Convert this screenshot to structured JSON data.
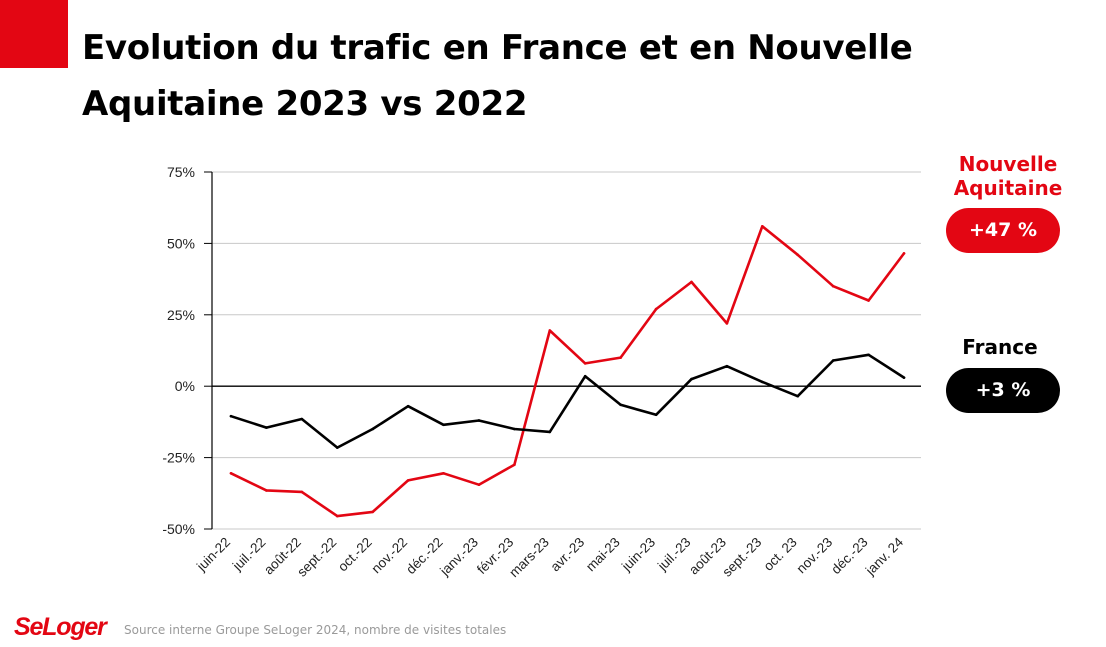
{
  "header": {
    "title": "Evolution du trafic en France et en Nouvelle Aquitaine 2023 vs 2022"
  },
  "legend": {
    "nouvelle_aquitaine": {
      "label": "Nouvelle Aquitaine",
      "badge": "+47 %",
      "color": "#e30613"
    },
    "france": {
      "label": "France",
      "badge": "+3 %",
      "color": "#000000"
    }
  },
  "footer": {
    "logo": "SeLoger",
    "source": "Source interne Groupe SeLoger 2024, nombre de visites totales"
  },
  "chart_data": {
    "type": "line",
    "title": "Evolution du trafic en France et en Nouvelle Aquitaine 2023 vs 2022",
    "xlabel": "",
    "ylabel": "",
    "ylim": [
      -50,
      75
    ],
    "yticks": [
      75,
      50,
      25,
      0,
      -25,
      -50
    ],
    "ytick_labels": [
      "75%",
      "50%",
      "25%",
      "0%",
      "-25%",
      "-50%"
    ],
    "grid": true,
    "categories": [
      "juin-22",
      "juil.-22",
      "août-22",
      "sept.-22",
      "oct.-22",
      "nov.-22",
      "déc.-22",
      "janv.-23",
      "févr.-23",
      "mars-23",
      "avr.-23",
      "mai-23",
      "juin-23",
      "juil.-23",
      "août-23",
      "sept.-23",
      "oct. 23",
      "nov.-23",
      "déc.-23",
      "janv. 24"
    ],
    "series": [
      {
        "name": "Nouvelle Aquitaine",
        "color": "#e30613",
        "values": [
          -30.5,
          -36.5,
          -37,
          -45.5,
          -44,
          -33,
          -30.5,
          -34.5,
          -27.5,
          19.5,
          8,
          10,
          27,
          36.5,
          22,
          56,
          46,
          35,
          30,
          46.5
        ]
      },
      {
        "name": "France",
        "color": "#000000",
        "values": [
          -10.5,
          -14.5,
          -11.5,
          -21.5,
          -15,
          -7,
          -13.5,
          -12,
          -15,
          -16,
          3.5,
          -6.5,
          -10,
          2.5,
          7,
          1.5,
          -3.5,
          9,
          11,
          3
        ]
      }
    ]
  }
}
